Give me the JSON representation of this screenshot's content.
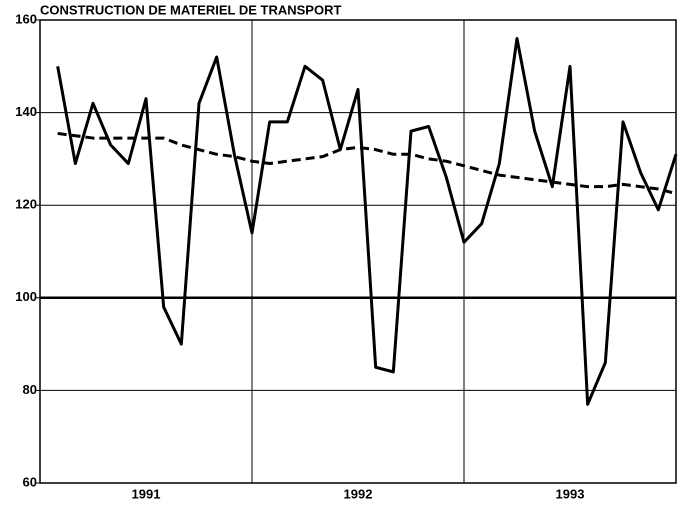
{
  "chart_data": {
    "type": "line",
    "title": "CONSTRUCTION DE MATERIEL DE TRANSPORT",
    "x": [
      1,
      2,
      3,
      4,
      5,
      6,
      7,
      8,
      9,
      10,
      11,
      12,
      13,
      14,
      15,
      16,
      17,
      18,
      19,
      20,
      21,
      22,
      23,
      24,
      25,
      26,
      27,
      28,
      29,
      30,
      31,
      32,
      33,
      34,
      35,
      36
    ],
    "xlim": [
      0,
      36
    ],
    "xticks": [
      {
        "value": 6,
        "label": "1991"
      },
      {
        "value": 18,
        "label": "1992"
      },
      {
        "value": 30,
        "label": "1993"
      }
    ],
    "xgrid": [
      12,
      24
    ],
    "series": [
      {
        "color": "#000000",
        "dash": false,
        "values": [
          150,
          129,
          142,
          133,
          129,
          143,
          98,
          90,
          142,
          152,
          131,
          114,
          138,
          138,
          150,
          147,
          132,
          145,
          85,
          84,
          136,
          137,
          126,
          112,
          116,
          129,
          156,
          136,
          124,
          150,
          77,
          86,
          138,
          127,
          119,
          131
        ]
      },
      {
        "color": "#000000",
        "dash": true,
        "values": [
          135.5,
          135,
          134.5,
          134.5,
          134.5,
          134.5,
          134.5,
          133,
          132,
          131,
          130.5,
          129.5,
          129,
          129.5,
          130,
          130.5,
          132,
          132.5,
          132,
          131,
          131,
          130,
          129.5,
          128.5,
          127.5,
          126.5,
          126,
          125.5,
          125,
          124.5,
          124,
          124,
          124.5,
          124,
          123.5,
          122.5
        ]
      }
    ],
    "ylim": [
      60,
      160
    ],
    "yticks": [
      60,
      80,
      100,
      120,
      140,
      160
    ],
    "grid": true
  }
}
